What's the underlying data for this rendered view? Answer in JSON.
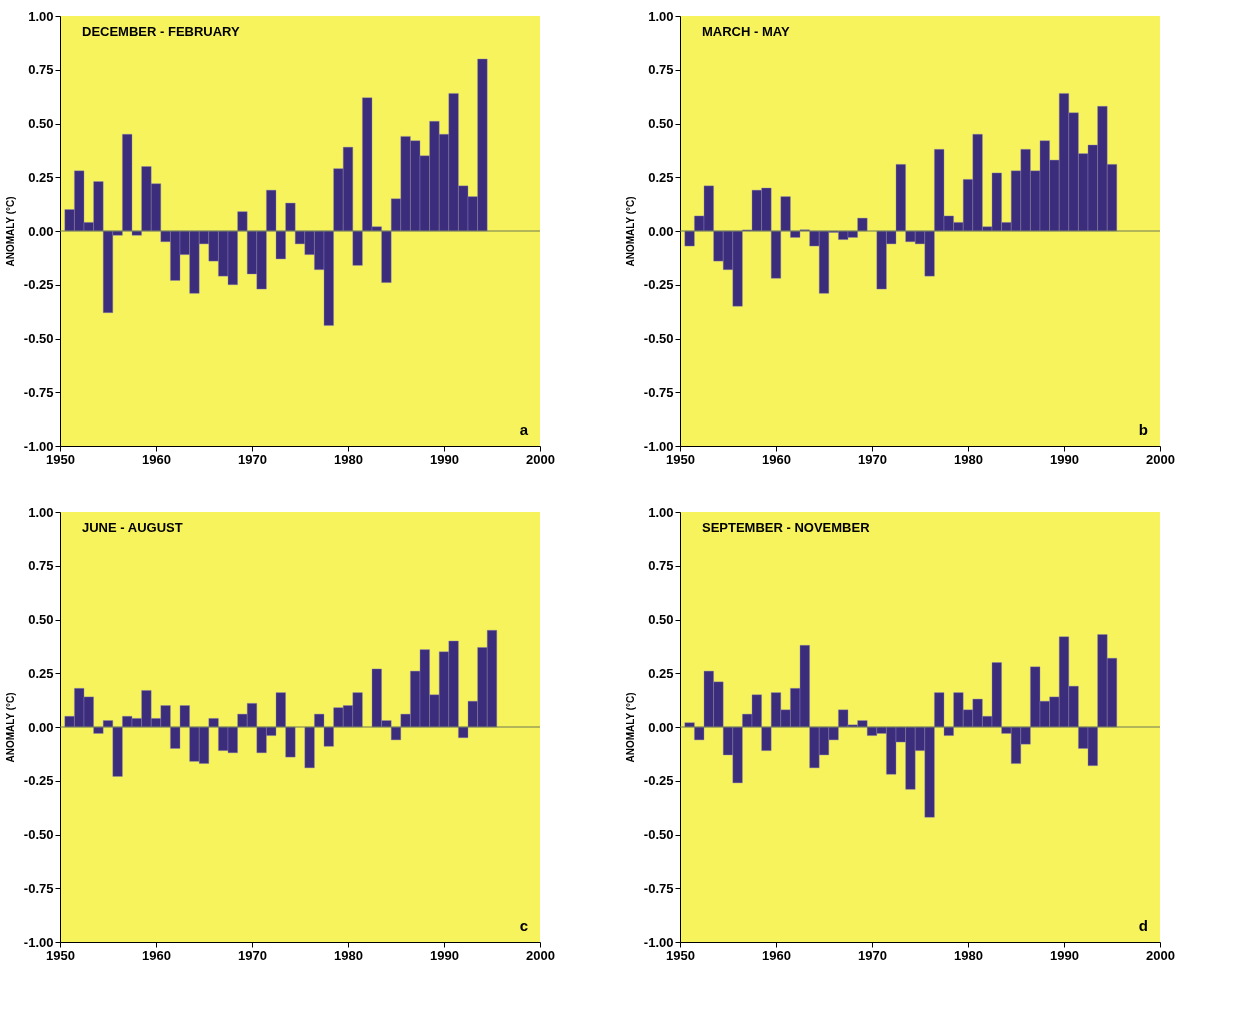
{
  "chart_data": [
    {
      "type": "bar",
      "title": "DECEMBER - FEBRUARY",
      "ylabel": "ANOMALY (°C)",
      "annotations": [
        "a"
      ],
      "x": [
        1951,
        1952,
        1953,
        1954,
        1955,
        1956,
        1957,
        1958,
        1959,
        1960,
        1961,
        1962,
        1963,
        1964,
        1965,
        1966,
        1967,
        1968,
        1969,
        1970,
        1971,
        1972,
        1973,
        1974,
        1975,
        1976,
        1977,
        1978,
        1979,
        1980,
        1981,
        1982,
        1983,
        1984,
        1985,
        1986,
        1987,
        1988,
        1989,
        1990,
        1991,
        1992,
        1993,
        1994
      ],
      "values": [
        0.1,
        0.28,
        0.04,
        0.23,
        -0.38,
        -0.02,
        0.45,
        -0.02,
        0.3,
        0.22,
        -0.05,
        -0.23,
        -0.11,
        -0.29,
        -0.06,
        -0.14,
        -0.21,
        -0.25,
        0.09,
        -0.2,
        -0.27,
        0.19,
        -0.13,
        0.13,
        -0.06,
        -0.11,
        -0.18,
        -0.44,
        0.29,
        0.39,
        -0.16,
        0.62,
        0.02,
        -0.24,
        0.15,
        0.44,
        0.42,
        0.35,
        0.51,
        0.45,
        0.64,
        0.21,
        0.16,
        0.8
      ],
      "color": "#3b2c7c",
      "xlim": [
        1950,
        2000
      ],
      "xticks": [
        1950,
        1960,
        1970,
        1980,
        1990,
        2000
      ],
      "ylim": [
        -1,
        1
      ],
      "yticks": [
        {
          "value": -1,
          "label": "-1.00"
        },
        {
          "value": -0.75,
          "label": "-0.75"
        },
        {
          "value": -0.5,
          "label": "-0.50"
        },
        {
          "value": -0.25,
          "label": "-0.25"
        },
        {
          "value": 0,
          "label": "0.00"
        },
        {
          "value": 0.25,
          "label": "0.25"
        },
        {
          "value": 0.5,
          "label": "0.50"
        },
        {
          "value": 0.75,
          "label": "0.75"
        },
        {
          "value": 1,
          "label": "1.00"
        }
      ],
      "ref_lines": [
        {
          "axis": "y",
          "value": 0,
          "color": "#6e7a55"
        }
      ],
      "grid": false
    },
    {
      "type": "bar",
      "title": "MARCH - MAY",
      "ylabel": "ANOMALY (°C)",
      "annotations": [
        "b"
      ],
      "x": [
        1951,
        1952,
        1953,
        1954,
        1955,
        1956,
        1957,
        1958,
        1959,
        1960,
        1961,
        1962,
        1963,
        1964,
        1965,
        1966,
        1967,
        1968,
        1969,
        1970,
        1971,
        1972,
        1973,
        1974,
        1975,
        1976,
        1977,
        1978,
        1979,
        1980,
        1981,
        1982,
        1983,
        1984,
        1985,
        1986,
        1987,
        1988,
        1989,
        1990,
        1991,
        1992,
        1993,
        1994,
        1995
      ],
      "values": [
        -0.07,
        0.07,
        0.21,
        -0.14,
        -0.18,
        -0.35,
        0.005,
        0.19,
        0.2,
        -0.22,
        0.16,
        -0.03,
        0.006,
        -0.07,
        -0.29,
        -0.007,
        -0.04,
        -0.03,
        0.06,
        null,
        -0.27,
        -0.06,
        0.31,
        -0.05,
        -0.06,
        -0.21,
        0.38,
        0.07,
        0.04,
        0.24,
        0.45,
        0.02,
        0.27,
        0.04,
        0.28,
        0.38,
        0.28,
        0.42,
        0.33,
        0.64,
        0.55,
        0.36,
        0.4,
        0.58,
        0.31
      ],
      "color": "#3b2c7c",
      "xlim": [
        1950,
        2000
      ],
      "xticks": [
        1950,
        1960,
        1970,
        1980,
        1990,
        2000
      ],
      "ylim": [
        -1,
        1
      ],
      "yticks": [
        {
          "value": -1,
          "label": "-1.00"
        },
        {
          "value": -0.75,
          "label": "-0.75"
        },
        {
          "value": -0.5,
          "label": "-0.50"
        },
        {
          "value": -0.25,
          "label": "-0.25"
        },
        {
          "value": 0,
          "label": "0.00"
        },
        {
          "value": 0.25,
          "label": "0.25"
        },
        {
          "value": 0.5,
          "label": "0.50"
        },
        {
          "value": 0.75,
          "label": "0.75"
        },
        {
          "value": 1,
          "label": "1.00"
        }
      ],
      "ref_lines": [
        {
          "axis": "y",
          "value": 0,
          "color": "#6e7a55"
        }
      ],
      "grid": false
    },
    {
      "type": "bar",
      "title": "JUNE - AUGUST",
      "ylabel": "ANOMALY (°C)",
      "annotations": [
        "c"
      ],
      "x": [
        1951,
        1952,
        1953,
        1954,
        1955,
        1956,
        1957,
        1958,
        1959,
        1960,
        1961,
        1962,
        1963,
        1964,
        1965,
        1966,
        1967,
        1968,
        1969,
        1970,
        1971,
        1972,
        1973,
        1974,
        1975,
        1976,
        1977,
        1978,
        1979,
        1980,
        1981,
        1982,
        1983,
        1984,
        1985,
        1986,
        1987,
        1988,
        1989,
        1990,
        1991,
        1992,
        1993,
        1994,
        1995
      ],
      "values": [
        0.05,
        0.18,
        0.14,
        -0.03,
        0.03,
        -0.23,
        0.05,
        0.04,
        0.17,
        0.04,
        0.1,
        -0.1,
        0.1,
        -0.16,
        -0.17,
        0.04,
        -0.11,
        -0.12,
        0.06,
        0.11,
        -0.12,
        -0.04,
        0.16,
        -0.14,
        null,
        -0.19,
        0.06,
        -0.09,
        0.09,
        0.1,
        0.16,
        null,
        0.27,
        0.03,
        -0.06,
        0.06,
        0.26,
        0.36,
        0.15,
        0.35,
        0.4,
        -0.05,
        0.12,
        0.37,
        0.45
      ],
      "color": "#3b2c7c",
      "xlim": [
        1950,
        2000
      ],
      "xticks": [
        1950,
        1960,
        1970,
        1980,
        1990,
        2000
      ],
      "ylim": [
        -1,
        1
      ],
      "yticks": [
        {
          "value": -1,
          "label": "-1.00"
        },
        {
          "value": -0.75,
          "label": "-0.75"
        },
        {
          "value": -0.5,
          "label": "-0.50"
        },
        {
          "value": -0.25,
          "label": "-0.25"
        },
        {
          "value": 0,
          "label": "0.00"
        },
        {
          "value": 0.25,
          "label": "0.25"
        },
        {
          "value": 0.5,
          "label": "0.50"
        },
        {
          "value": 0.75,
          "label": "0.75"
        },
        {
          "value": 1,
          "label": "1.00"
        }
      ],
      "ref_lines": [
        {
          "axis": "y",
          "value": 0,
          "color": "#6e7a55"
        }
      ],
      "grid": false
    },
    {
      "type": "bar",
      "title": "SEPTEMBER - NOVEMBER",
      "ylabel": "ANOMALY (°C)",
      "annotations": [
        "d"
      ],
      "x": [
        1951,
        1952,
        1953,
        1954,
        1955,
        1956,
        1957,
        1958,
        1959,
        1960,
        1961,
        1962,
        1963,
        1964,
        1965,
        1966,
        1967,
        1968,
        1969,
        1970,
        1971,
        1972,
        1973,
        1974,
        1975,
        1976,
        1977,
        1978,
        1979,
        1980,
        1981,
        1982,
        1983,
        1984,
        1985,
        1986,
        1987,
        1988,
        1989,
        1990,
        1991,
        1992,
        1993,
        1994,
        1995
      ],
      "values": [
        0.02,
        -0.06,
        0.26,
        0.21,
        -0.13,
        -0.26,
        0.06,
        0.15,
        -0.11,
        0.16,
        0.08,
        0.18,
        0.38,
        -0.19,
        -0.13,
        -0.06,
        0.08,
        0.01,
        0.03,
        -0.04,
        -0.03,
        -0.22,
        -0.07,
        -0.29,
        -0.11,
        -0.42,
        0.16,
        -0.04,
        0.16,
        0.08,
        0.13,
        0.05,
        0.3,
        -0.03,
        -0.17,
        -0.08,
        0.28,
        0.12,
        0.14,
        0.42,
        0.19,
        -0.1,
        -0.18,
        0.43,
        0.32
      ],
      "color": "#3b2c7c",
      "xlim": [
        1950,
        2000
      ],
      "xticks": [
        1950,
        1960,
        1970,
        1980,
        1990,
        2000
      ],
      "ylim": [
        -1,
        1
      ],
      "yticks": [
        {
          "value": -1,
          "label": "-1.00"
        },
        {
          "value": -0.75,
          "label": "-0.75"
        },
        {
          "value": -0.5,
          "label": "-0.50"
        },
        {
          "value": -0.25,
          "label": "-0.25"
        },
        {
          "value": 0,
          "label": "0.00"
        },
        {
          "value": 0.25,
          "label": "0.25"
        },
        {
          "value": 0.5,
          "label": "0.50"
        },
        {
          "value": 0.75,
          "label": "0.75"
        },
        {
          "value": 1,
          "label": "1.00"
        }
      ],
      "ref_lines": [
        {
          "axis": "y",
          "value": 0,
          "color": "#6e7a55"
        }
      ],
      "grid": false
    }
  ]
}
